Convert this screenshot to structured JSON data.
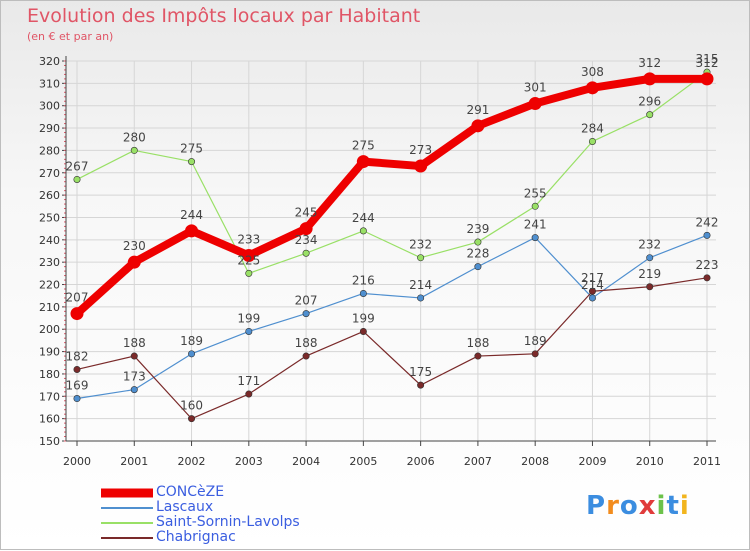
{
  "title": "Evolution des Impôts locaux par Habitant",
  "subtitle": "(en € et par an)",
  "brand": "Proxiti",
  "chart_data": {
    "type": "line",
    "title": "Evolution des Impôts locaux par Habitant",
    "subtitle": "(en € et par an)",
    "xlabel": "",
    "ylabel": "",
    "ylim": [
      150,
      320
    ],
    "y_ticks": [
      150,
      160,
      170,
      180,
      190,
      200,
      210,
      220,
      230,
      240,
      250,
      260,
      270,
      280,
      290,
      300,
      310,
      320
    ],
    "x": [
      "2000",
      "2001",
      "2002",
      "2003",
      "2004",
      "2005",
      "2006",
      "2007",
      "2008",
      "2009",
      "2010",
      "2011"
    ],
    "grid": true,
    "legend_position": "bottom-left",
    "series": [
      {
        "name": "Lascaux",
        "color": "#4f8fcf",
        "values": [
          169,
          173,
          189,
          199,
          207,
          216,
          214,
          228,
          241,
          214,
          232,
          242
        ]
      },
      {
        "name": "Saint-Sornin-Lavolps",
        "color": "#99e066",
        "values": [
          267,
          280,
          275,
          225,
          234,
          244,
          232,
          239,
          255,
          284,
          296,
          315
        ]
      },
      {
        "name": "Chabrignac",
        "color": "#7a2a2a",
        "values": [
          182,
          188,
          160,
          171,
          188,
          199,
          175,
          188,
          189,
          217,
          219,
          223
        ]
      },
      {
        "name": "CONCèZE",
        "color": "#ee0000",
        "values": [
          207,
          230,
          244,
          233,
          245,
          275,
          273,
          291,
          301,
          308,
          312,
          312
        ]
      }
    ],
    "legend": [
      "CONCèZE",
      "Lascaux",
      "Saint-Sornin-Lavolps",
      "Chabrignac"
    ]
  }
}
